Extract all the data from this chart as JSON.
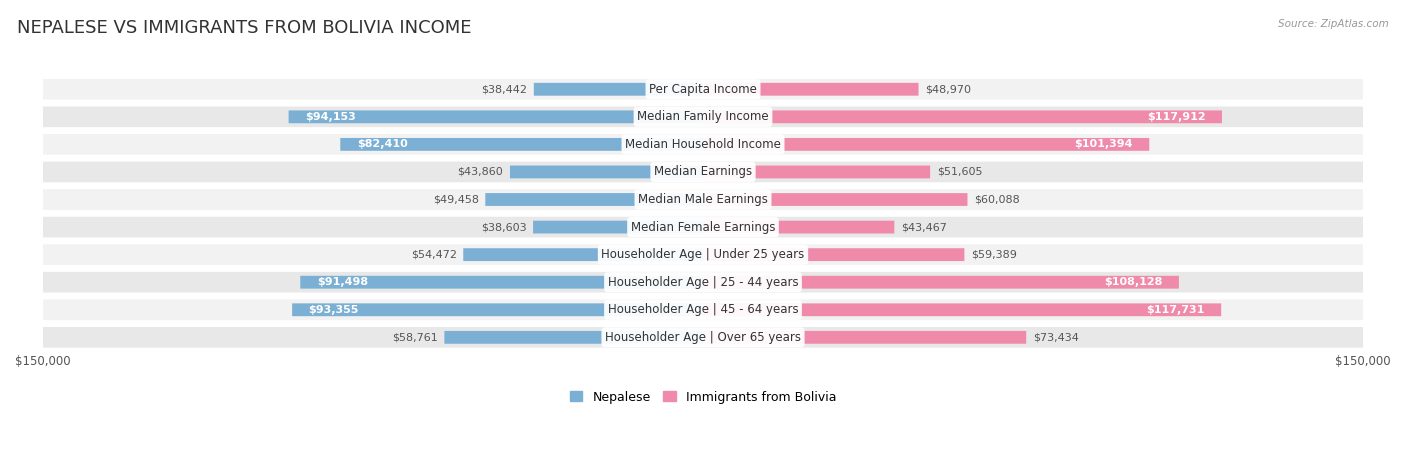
{
  "title": "NEPALESE VS IMMIGRANTS FROM BOLIVIA INCOME",
  "source": "Source: ZipAtlas.com",
  "categories": [
    "Per Capita Income",
    "Median Family Income",
    "Median Household Income",
    "Median Earnings",
    "Median Male Earnings",
    "Median Female Earnings",
    "Householder Age | Under 25 years",
    "Householder Age | 25 - 44 years",
    "Householder Age | 45 - 64 years",
    "Householder Age | Over 65 years"
  ],
  "nepalese": [
    38442,
    94153,
    82410,
    43860,
    49458,
    38603,
    54472,
    91498,
    93355,
    58761
  ],
  "bolivia": [
    48970,
    117912,
    101394,
    51605,
    60088,
    43467,
    59389,
    108128,
    117731,
    73434
  ],
  "nepalese_color": "#7bafd4",
  "bolivia_color": "#f08aab",
  "max_val": 150000,
  "background_color": "#ffffff",
  "title_fontsize": 13,
  "label_fontsize": 8,
  "category_fontsize": 8.5,
  "row_bg_even": "#f2f2f2",
  "row_bg_odd": "#e8e8e8",
  "nepalese_inner": [
    94153,
    82410,
    91498,
    93355
  ],
  "bolivia_inner": [
    117912,
    101394,
    108128,
    117731
  ]
}
